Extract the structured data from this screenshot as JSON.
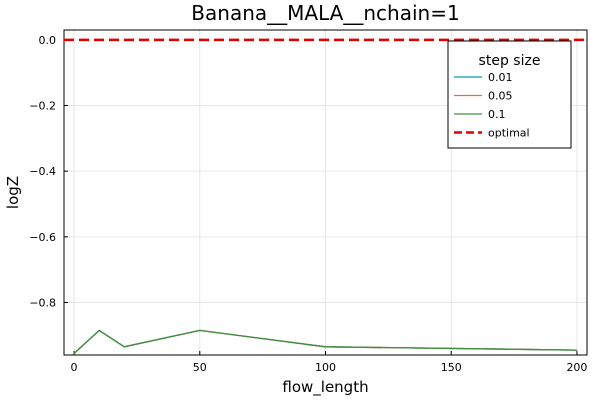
{
  "chart_data": {
    "type": "line",
    "title": "Banana__MALA__nchain=1",
    "xlabel": "flow_length",
    "ylabel": "logZ",
    "xlim": [
      -4,
      204
    ],
    "ylim": [
      -0.96,
      0.03
    ],
    "xticks": [
      0,
      50,
      100,
      150,
      200
    ],
    "yticks": [
      0.0,
      -0.2,
      -0.4,
      -0.6,
      -0.8
    ],
    "xtick_labels": [
      "0",
      "50",
      "100",
      "150",
      "200"
    ],
    "ytick_labels": [
      "0.0",
      "−0.2",
      "−0.4",
      "−0.6",
      "−0.8"
    ],
    "grid": true,
    "legend": {
      "title": "step size",
      "position": "top-right"
    },
    "x": [
      0,
      10,
      20,
      50,
      100,
      200
    ],
    "series": [
      {
        "name": "0.01",
        "color": "#0aa0a8",
        "values": [
          -0.955,
          -0.885,
          -0.935,
          -0.885,
          -0.935,
          -0.945
        ]
      },
      {
        "name": "0.05",
        "color": "#e26f46",
        "values": [
          -0.955,
          -0.885,
          -0.935,
          -0.885,
          -0.935,
          -0.945
        ]
      },
      {
        "name": "0.1",
        "color": "#3d9140",
        "values": [
          -0.955,
          -0.885,
          -0.935,
          -0.885,
          -0.935,
          -0.945
        ]
      }
    ],
    "hlines": [
      {
        "name": "optimal",
        "y": 0.0,
        "color": "#e00000",
        "style": "dashed"
      }
    ]
  }
}
